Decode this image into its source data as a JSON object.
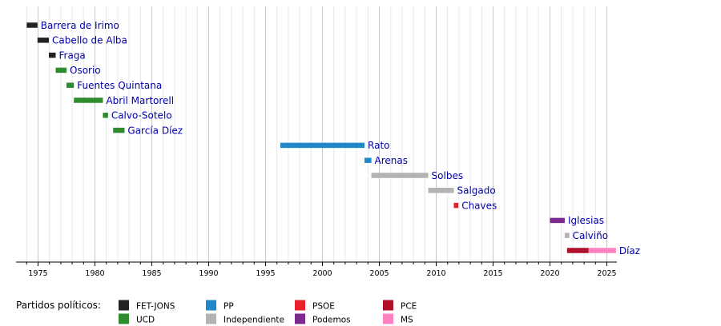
{
  "chart_data": {
    "type": "timeline",
    "x_range": [
      1973,
      2026
    ],
    "tick_values": [
      1975,
      1980,
      1985,
      1990,
      1995,
      2000,
      2005,
      2010,
      2015,
      2020,
      2025
    ],
    "minor_grid_step": 1,
    "legend_title": "Partidos políticos:",
    "parties": [
      {
        "key": "fet",
        "label": "FET-JONS",
        "color": "#222222"
      },
      {
        "key": "ucd",
        "label": "UCD",
        "color": "#2e8b2e"
      },
      {
        "key": "pp",
        "label": "PP",
        "color": "#1e88c8"
      },
      {
        "key": "ind",
        "label": "Independiente",
        "color": "#b3b3b3"
      },
      {
        "key": "psoe",
        "label": "PSOE",
        "color": "#e8202a"
      },
      {
        "key": "podemos",
        "label": "Podemos",
        "color": "#7b2a8e"
      },
      {
        "key": "pce",
        "label": "PCE",
        "color": "#b0102a"
      },
      {
        "key": "ms",
        "label": "MS",
        "color": "#ff80c0"
      }
    ],
    "rows": [
      {
        "name": "Barrera de Irimo",
        "segments": [
          {
            "start": 1974.0,
            "end": 1974.95,
            "party": "fet"
          }
        ]
      },
      {
        "name": "Cabello de Alba",
        "segments": [
          {
            "start": 1974.95,
            "end": 1975.95,
            "party": "fet"
          }
        ]
      },
      {
        "name": "Fraga",
        "segments": [
          {
            "start": 1975.95,
            "end": 1976.55,
            "party": "fet"
          }
        ]
      },
      {
        "name": "Osorio",
        "segments": [
          {
            "start": 1976.55,
            "end": 1977.5,
            "party": "ucd"
          }
        ]
      },
      {
        "name": "Fuentes Quintana",
        "segments": [
          {
            "start": 1977.5,
            "end": 1978.15,
            "party": "ucd"
          }
        ]
      },
      {
        "name": "Abril Martorell",
        "segments": [
          {
            "start": 1978.15,
            "end": 1980.7,
            "party": "ucd"
          }
        ]
      },
      {
        "name": "Calvo-Sotelo",
        "segments": [
          {
            "start": 1980.7,
            "end": 1981.15,
            "party": "ucd"
          }
        ]
      },
      {
        "name": "García Díez",
        "segments": [
          {
            "start": 1981.6,
            "end": 1982.6,
            "party": "ucd"
          }
        ]
      },
      {
        "name": "Rato",
        "segments": [
          {
            "start": 1996.3,
            "end": 2003.7,
            "party": "pp"
          }
        ]
      },
      {
        "name": "Arenas",
        "segments": [
          {
            "start": 2003.7,
            "end": 2004.3,
            "party": "pp"
          }
        ]
      },
      {
        "name": "Solbes",
        "segments": [
          {
            "start": 2004.3,
            "end": 2009.3,
            "party": "ind"
          }
        ]
      },
      {
        "name": "Salgado",
        "segments": [
          {
            "start": 2009.3,
            "end": 2011.55,
            "party": "ind"
          }
        ]
      },
      {
        "name": "Chaves",
        "segments": [
          {
            "start": 2011.55,
            "end": 2011.95,
            "party": "psoe"
          }
        ]
      },
      {
        "name": "Iglesias",
        "segments": [
          {
            "start": 2020.0,
            "end": 2021.3,
            "party": "podemos"
          }
        ]
      },
      {
        "name": "Calviño",
        "segments": [
          {
            "start": 2021.3,
            "end": 2021.7,
            "party": "ind"
          }
        ]
      },
      {
        "name": "Díaz",
        "segments": [
          {
            "start": 2021.5,
            "end": 2023.4,
            "party": "pce"
          },
          {
            "start": 2023.4,
            "end": 2025.8,
            "party": "ms"
          }
        ]
      }
    ]
  }
}
